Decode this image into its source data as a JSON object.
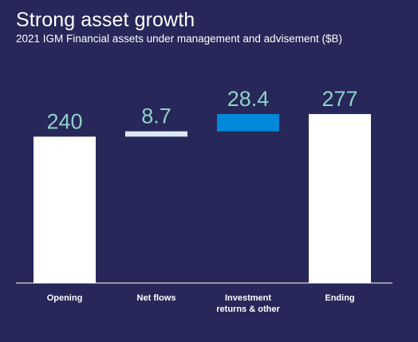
{
  "title": "Strong asset growth",
  "subtitle": "2021 IGM Financial assets under management and advisement ($B)",
  "colors": {
    "background": "#27275a",
    "total_bar": "#ffffff",
    "net_flows_bar": "#dde9f6",
    "investment_bar": "#0288d9",
    "value_label": "#8fd1c9",
    "axis": "#ffffff"
  },
  "chart_data": {
    "type": "bar",
    "subtype": "waterfall",
    "categories": [
      "Opening",
      "Net flows",
      "Investment returns & other",
      "Ending"
    ],
    "category_lines": [
      [
        "Opening"
      ],
      [
        "Net flows"
      ],
      [
        "Investment",
        "returns & other"
      ],
      [
        "Ending"
      ]
    ],
    "values": [
      240,
      8.7,
      28.4,
      277
    ],
    "value_labels": [
      "240",
      "8.7",
      "28.4",
      "277"
    ],
    "bar_kinds": [
      "total",
      "increment",
      "increment",
      "total"
    ],
    "ylim": [
      0,
      300
    ],
    "grid": false,
    "legend": "none"
  }
}
